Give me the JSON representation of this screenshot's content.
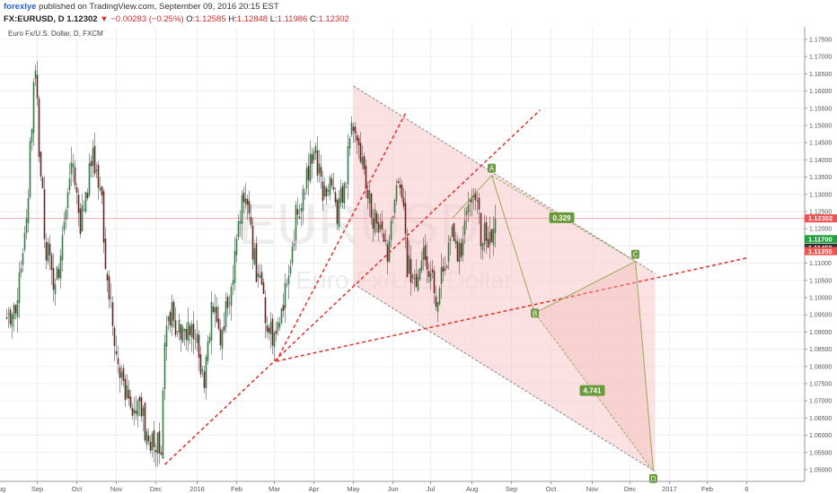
{
  "header": {
    "author": "forexlye",
    "published": "published on TradingView.com, September 09, 2016 20:15 EST",
    "symbol": "FX:EURUSD, D",
    "last": "1.12302",
    "change": "−0.00283 (−0.25%)",
    "o_label": "O:",
    "o_value": "1.12585",
    "h_label": "H:",
    "h_value": "1.12848",
    "l_label": "L:",
    "l_value": "1.11986",
    "c_label": "C:",
    "c_value": "1.12302",
    "change_color": "#d32f2f"
  },
  "chart_data": {
    "type": "candlestick",
    "title": "Euro Fx/U.S. Dollar, D, FXCM",
    "watermark": "EURUSD",
    "watermark_sub": "Euro Fx/U.S. Dollar",
    "ylim": [
      1.0455,
      1.1775
    ],
    "y_ticks": [
      "1.17500",
      "1.17000",
      "1.16500",
      "1.16000",
      "1.15500",
      "1.15000",
      "1.14500",
      "1.14000",
      "1.13500",
      "1.13000",
      "1.12500",
      "1.12000",
      "1.11500",
      "1.11000",
      "1.10500",
      "1.10000",
      "1.09500",
      "1.09000",
      "1.08500",
      "1.08000",
      "1.07500",
      "1.07000",
      "1.06500",
      "1.06000",
      "1.05500",
      "1.05000"
    ],
    "time_labels": [
      "Aug",
      "Sep",
      "Oct",
      "Nov",
      "Dec",
      "2016",
      "Feb",
      "Mar",
      "Apr",
      "May",
      "Jun",
      "Jul",
      "Aug",
      "Sep",
      "Oct",
      "Nov",
      "Dec",
      "2017",
      "Feb",
      "6"
    ],
    "time_label_index": [
      -4,
      17,
      39,
      61,
      83,
      106,
      128,
      149,
      171,
      193,
      215,
      236,
      259,
      281,
      303,
      326,
      347,
      369,
      390,
      412
    ],
    "price_labels": [
      {
        "value": "1.12302",
        "price": 1.12302,
        "color": "#ef5350"
      },
      {
        "value": "1.11700",
        "price": 1.117,
        "color": "#26a041"
      },
      {
        "value": "1.11450",
        "price": 1.1145,
        "color": "#333333"
      },
      {
        "value": "1.11350",
        "price": 1.1135,
        "color": "#ef5350"
      }
    ],
    "anchors": [
      {
        "i": 0,
        "price": 1.09
      },
      {
        "i": 6,
        "price": 1.1
      },
      {
        "i": 10,
        "price": 1.115
      },
      {
        "i": 14,
        "price": 1.15
      },
      {
        "i": 16,
        "price": 1.168
      },
      {
        "i": 18,
        "price": 1.14
      },
      {
        "i": 22,
        "price": 1.115
      },
      {
        "i": 27,
        "price": 1.1
      },
      {
        "i": 32,
        "price": 1.125
      },
      {
        "i": 36,
        "price": 1.14
      },
      {
        "i": 41,
        "price": 1.12
      },
      {
        "i": 47,
        "price": 1.14
      },
      {
        "i": 52,
        "price": 1.135
      },
      {
        "i": 55,
        "price": 1.112
      },
      {
        "i": 60,
        "price": 1.09
      },
      {
        "i": 64,
        "price": 1.077
      },
      {
        "i": 70,
        "price": 1.07
      },
      {
        "i": 76,
        "price": 1.064
      },
      {
        "i": 82,
        "price": 1.057
      },
      {
        "i": 86,
        "price": 1.057
      },
      {
        "i": 88,
        "price": 1.085
      },
      {
        "i": 91,
        "price": 1.095
      },
      {
        "i": 96,
        "price": 1.092
      },
      {
        "i": 101,
        "price": 1.09
      },
      {
        "i": 106,
        "price": 1.088
      },
      {
        "i": 110,
        "price": 1.075
      },
      {
        "i": 114,
        "price": 1.095
      },
      {
        "i": 119,
        "price": 1.09
      },
      {
        "i": 123,
        "price": 1.098
      },
      {
        "i": 127,
        "price": 1.11
      },
      {
        "i": 131,
        "price": 1.128
      },
      {
        "i": 135,
        "price": 1.125
      },
      {
        "i": 138,
        "price": 1.11
      },
      {
        "i": 143,
        "price": 1.1
      },
      {
        "i": 146,
        "price": 1.09
      },
      {
        "i": 149,
        "price": 1.086
      },
      {
        "i": 152,
        "price": 1.09
      },
      {
        "i": 156,
        "price": 1.105
      },
      {
        "i": 160,
        "price": 1.12
      },
      {
        "i": 164,
        "price": 1.13
      },
      {
        "i": 168,
        "price": 1.138
      },
      {
        "i": 172,
        "price": 1.14
      },
      {
        "i": 176,
        "price": 1.13
      },
      {
        "i": 180,
        "price": 1.135
      },
      {
        "i": 184,
        "price": 1.125
      },
      {
        "i": 188,
        "price": 1.132
      },
      {
        "i": 192,
        "price": 1.148
      },
      {
        "i": 194,
        "price": 1.152
      },
      {
        "i": 198,
        "price": 1.14
      },
      {
        "i": 203,
        "price": 1.125
      },
      {
        "i": 208,
        "price": 1.117
      },
      {
        "i": 212,
        "price": 1.113
      },
      {
        "i": 216,
        "price": 1.132
      },
      {
        "i": 220,
        "price": 1.128
      },
      {
        "i": 223,
        "price": 1.11
      },
      {
        "i": 227,
        "price": 1.105
      },
      {
        "i": 231,
        "price": 1.112
      },
      {
        "i": 235,
        "price": 1.108
      },
      {
        "i": 239,
        "price": 1.1
      },
      {
        "i": 243,
        "price": 1.11
      },
      {
        "i": 248,
        "price": 1.117
      },
      {
        "i": 252,
        "price": 1.112
      },
      {
        "i": 256,
        "price": 1.122
      },
      {
        "i": 260,
        "price": 1.131
      },
      {
        "i": 264,
        "price": 1.119
      },
      {
        "i": 268,
        "price": 1.116
      },
      {
        "i": 272,
        "price": 1.123
      }
    ],
    "annotations": {
      "channel_upper": [
        {
          "i": 193,
          "price": 1.1615
        },
        {
          "i": 361,
          "price": 1.107
        }
      ],
      "channel_lower": [
        {
          "i": 193,
          "price": 1.104
        },
        {
          "i": 361,
          "price": 1.0495
        }
      ],
      "trendlines": [
        {
          "from": {
            "i": 88,
            "price": 1.0515
          },
          "to": {
            "i": 297,
            "price": 1.1545
          }
        },
        {
          "from": {
            "i": 150,
            "price": 1.0815
          },
          "to": {
            "i": 222,
            "price": 1.1535
          }
        },
        {
          "from": {
            "i": 150,
            "price": 1.0815
          },
          "to": {
            "i": 412,
            "price": 1.1115
          }
        }
      ],
      "pattern_points": [
        {
          "label": "A",
          "i": 270,
          "price": 1.1355
        },
        {
          "label": "B",
          "i": 294,
          "price": 1.0955
        },
        {
          "label": "C",
          "i": 350,
          "price": 1.1105
        },
        {
          "label": "D",
          "i": 360,
          "price": 1.0495
        }
      ],
      "ratio_labels": [
        {
          "value": "0.329",
          "i": 309,
          "price": 1.1232
        },
        {
          "value": "4.741",
          "i": 326,
          "price": 1.073
        }
      ]
    }
  }
}
